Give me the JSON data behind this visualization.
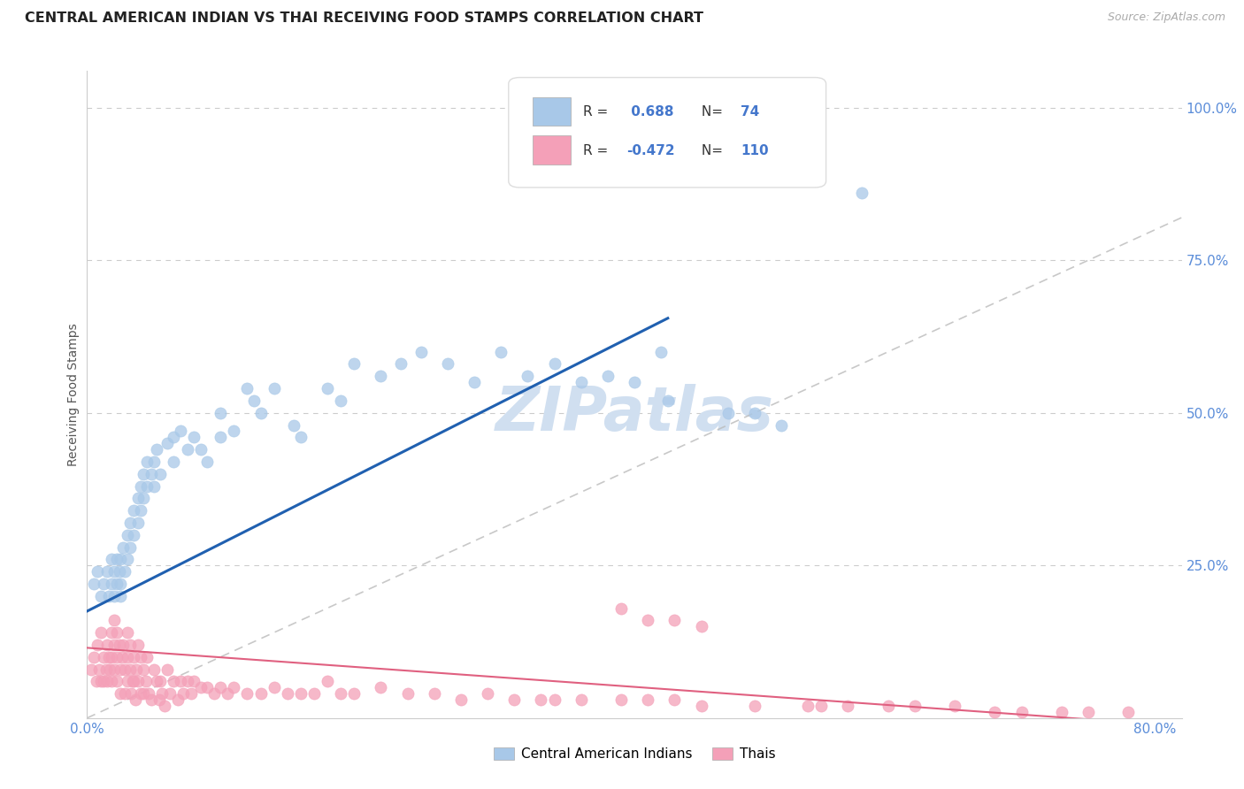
{
  "title": "CENTRAL AMERICAN INDIAN VS THAI RECEIVING FOOD STAMPS CORRELATION CHART",
  "source": "Source: ZipAtlas.com",
  "ylabel": "Receiving Food Stamps",
  "xlim": [
    0.0,
    0.82
  ],
  "ylim": [
    0.0,
    1.06
  ],
  "R_blue": 0.688,
  "N_blue": 74,
  "R_pink": -0.472,
  "N_pink": 110,
  "legend_label_blue": "Central American Indians",
  "legend_label_pink": "Thais",
  "color_blue": "#A8C8E8",
  "color_pink": "#F4A0B8",
  "color_line_blue": "#2060B0",
  "color_line_pink": "#E06080",
  "color_diag": "#BBBBBB",
  "color_grid": "#CCCCCC",
  "watermark_color": "#D0DFF0",
  "blue_line_x0": 0.0,
  "blue_line_y0": 0.175,
  "blue_line_x1": 0.435,
  "blue_line_y1": 0.655,
  "pink_line_x0": 0.0,
  "pink_line_y0": 0.115,
  "pink_line_x1": 0.8,
  "pink_line_y1": -0.01,
  "blue_scatter_x": [
    0.005,
    0.008,
    0.01,
    0.012,
    0.015,
    0.016,
    0.018,
    0.018,
    0.02,
    0.02,
    0.022,
    0.022,
    0.024,
    0.025,
    0.025,
    0.025,
    0.027,
    0.028,
    0.03,
    0.03,
    0.032,
    0.032,
    0.035,
    0.035,
    0.038,
    0.038,
    0.04,
    0.04,
    0.042,
    0.042,
    0.045,
    0.045,
    0.048,
    0.05,
    0.05,
    0.052,
    0.055,
    0.06,
    0.065,
    0.065,
    0.07,
    0.075,
    0.08,
    0.085,
    0.09,
    0.1,
    0.1,
    0.11,
    0.12,
    0.125,
    0.13,
    0.14,
    0.155,
    0.16,
    0.18,
    0.19,
    0.2,
    0.22,
    0.235,
    0.25,
    0.27,
    0.29,
    0.31,
    0.33,
    0.35,
    0.37,
    0.39,
    0.41,
    0.43,
    0.435,
    0.48,
    0.5,
    0.52,
    0.58
  ],
  "blue_scatter_y": [
    0.22,
    0.24,
    0.2,
    0.22,
    0.24,
    0.2,
    0.26,
    0.22,
    0.24,
    0.2,
    0.26,
    0.22,
    0.24,
    0.2,
    0.26,
    0.22,
    0.28,
    0.24,
    0.3,
    0.26,
    0.32,
    0.28,
    0.34,
    0.3,
    0.36,
    0.32,
    0.38,
    0.34,
    0.4,
    0.36,
    0.42,
    0.38,
    0.4,
    0.42,
    0.38,
    0.44,
    0.4,
    0.45,
    0.46,
    0.42,
    0.47,
    0.44,
    0.46,
    0.44,
    0.42,
    0.46,
    0.5,
    0.47,
    0.54,
    0.52,
    0.5,
    0.54,
    0.48,
    0.46,
    0.54,
    0.52,
    0.58,
    0.56,
    0.58,
    0.6,
    0.58,
    0.55,
    0.6,
    0.56,
    0.58,
    0.55,
    0.56,
    0.55,
    0.6,
    0.52,
    0.5,
    0.5,
    0.48,
    0.86
  ],
  "pink_scatter_x": [
    0.003,
    0.005,
    0.007,
    0.008,
    0.009,
    0.01,
    0.01,
    0.012,
    0.012,
    0.014,
    0.015,
    0.015,
    0.016,
    0.017,
    0.018,
    0.018,
    0.018,
    0.02,
    0.02,
    0.02,
    0.022,
    0.022,
    0.022,
    0.024,
    0.025,
    0.025,
    0.026,
    0.027,
    0.028,
    0.028,
    0.03,
    0.03,
    0.03,
    0.032,
    0.032,
    0.033,
    0.034,
    0.035,
    0.035,
    0.036,
    0.037,
    0.038,
    0.038,
    0.04,
    0.04,
    0.042,
    0.042,
    0.044,
    0.045,
    0.046,
    0.048,
    0.05,
    0.052,
    0.054,
    0.055,
    0.056,
    0.058,
    0.06,
    0.062,
    0.065,
    0.068,
    0.07,
    0.072,
    0.075,
    0.078,
    0.08,
    0.085,
    0.09,
    0.095,
    0.1,
    0.105,
    0.11,
    0.12,
    0.13,
    0.14,
    0.15,
    0.16,
    0.17,
    0.18,
    0.19,
    0.2,
    0.22,
    0.24,
    0.26,
    0.28,
    0.3,
    0.32,
    0.34,
    0.35,
    0.37,
    0.4,
    0.42,
    0.44,
    0.46,
    0.5,
    0.54,
    0.55,
    0.57,
    0.6,
    0.62,
    0.65,
    0.68,
    0.7,
    0.73,
    0.75,
    0.78,
    0.4,
    0.42,
    0.44,
    0.46
  ],
  "pink_scatter_y": [
    0.08,
    0.1,
    0.06,
    0.12,
    0.08,
    0.14,
    0.06,
    0.1,
    0.06,
    0.08,
    0.12,
    0.06,
    0.1,
    0.08,
    0.14,
    0.1,
    0.06,
    0.16,
    0.12,
    0.08,
    0.14,
    0.1,
    0.06,
    0.12,
    0.08,
    0.04,
    0.1,
    0.12,
    0.08,
    0.04,
    0.14,
    0.1,
    0.06,
    0.12,
    0.08,
    0.04,
    0.06,
    0.1,
    0.06,
    0.03,
    0.08,
    0.12,
    0.06,
    0.1,
    0.04,
    0.08,
    0.04,
    0.06,
    0.1,
    0.04,
    0.03,
    0.08,
    0.06,
    0.03,
    0.06,
    0.04,
    0.02,
    0.08,
    0.04,
    0.06,
    0.03,
    0.06,
    0.04,
    0.06,
    0.04,
    0.06,
    0.05,
    0.05,
    0.04,
    0.05,
    0.04,
    0.05,
    0.04,
    0.04,
    0.05,
    0.04,
    0.04,
    0.04,
    0.06,
    0.04,
    0.04,
    0.05,
    0.04,
    0.04,
    0.03,
    0.04,
    0.03,
    0.03,
    0.03,
    0.03,
    0.03,
    0.03,
    0.03,
    0.02,
    0.02,
    0.02,
    0.02,
    0.02,
    0.02,
    0.02,
    0.02,
    0.01,
    0.01,
    0.01,
    0.01,
    0.01,
    0.18,
    0.16,
    0.16,
    0.15
  ]
}
